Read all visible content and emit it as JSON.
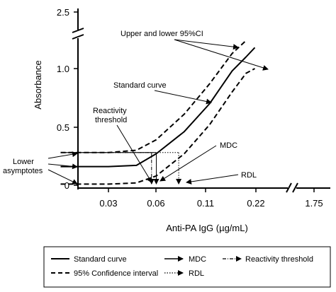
{
  "chart_data": {
    "type": "line",
    "xlabel": "Anti-PA IgG (µg/mL)",
    "ylabel": "Absorbance",
    "x_tick_labels": [
      "0.03",
      "0.06",
      "0.11",
      "0.22",
      "1.75"
    ],
    "y_tick_labels": [
      "0",
      "0.5",
      "1.0",
      "2.5"
    ],
    "ylim": [
      0,
      1.2
    ],
    "axis_breaks": [
      "y between 1.2 and 2.5",
      "x between 0.22 and 1.75"
    ],
    "series": [
      {
        "name": "Standard curve",
        "style": "solid",
        "x": [
          0.015,
          0.03,
          0.045,
          0.06,
          0.09,
          0.13,
          0.18,
          0.22,
          0.25
        ],
        "y": [
          0.16,
          0.16,
          0.17,
          0.27,
          0.46,
          0.7,
          0.98,
          1.1,
          1.18
        ]
      },
      {
        "name": "95% Confidence interval",
        "style": "dashed",
        "bound": "upper",
        "x": [
          0.015,
          0.03,
          0.045,
          0.06,
          0.09,
          0.13,
          0.18,
          0.22
        ],
        "y": [
          0.28,
          0.28,
          0.3,
          0.39,
          0.61,
          0.87,
          1.13,
          1.24
        ]
      },
      {
        "name": "95% Confidence interval",
        "style": "dashed",
        "bound": "lower",
        "x": [
          0.015,
          0.03,
          0.045,
          0.06,
          0.09,
          0.13,
          0.18,
          0.22,
          0.25
        ],
        "y": [
          0.01,
          0.01,
          0.02,
          0.08,
          0.27,
          0.52,
          0.8,
          0.96,
          1.0
        ]
      }
    ],
    "reference_markers": [
      {
        "name": "Reactivity threshold",
        "style": "dash-dot",
        "x": 0.056,
        "y": 0.28
      },
      {
        "name": "MDC",
        "style": "solid",
        "x": 0.06,
        "y": 0.28
      },
      {
        "name": "RDL",
        "style": "dotted",
        "x": 0.083,
        "y": 0.28
      }
    ],
    "annotations": {
      "ci": "Upper and lower 95%CI",
      "standard_curve": "Standard curve",
      "reactivity_line1": "Reactivity",
      "reactivity_line2": "threshold",
      "mdc": "MDC",
      "rdl": "RDL",
      "lower_asymptotes_line1": "Lower",
      "lower_asymptotes_line2": "asymptotes"
    },
    "legend": {
      "position": "bottom",
      "items": [
        {
          "label": "Standard curve",
          "style": "solid"
        },
        {
          "label": "MDC",
          "style": "arrow"
        },
        {
          "label": "Reactivity threshold",
          "style": "dash-dot-arrow"
        },
        {
          "label": "95% Confidence interval",
          "style": "dashed"
        },
        {
          "label": "RDL",
          "style": "dotted-arrow"
        }
      ]
    }
  }
}
